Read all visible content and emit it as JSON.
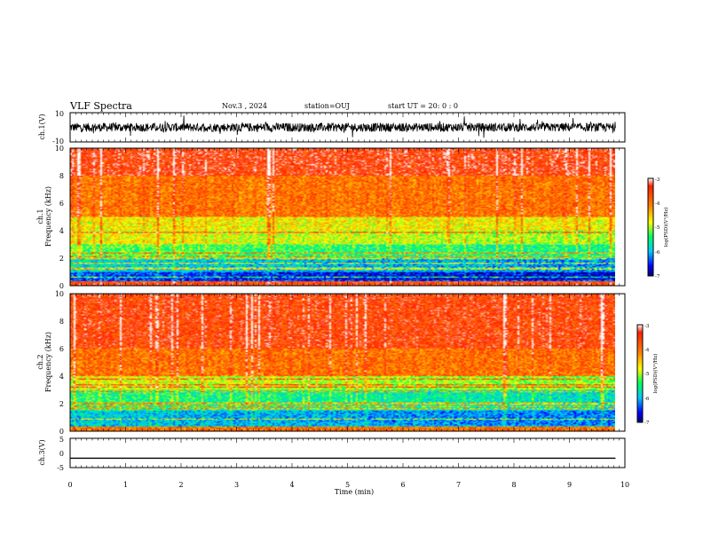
{
  "header": {
    "title": "VLF Spectra",
    "date": "Nov.3  , 2024",
    "station": "station=OUJ",
    "start_ut": "start  UT  =   20: 0  : 0"
  },
  "colors": {
    "frame": "#000000",
    "colormap": [
      "#000070",
      "#0000ff",
      "#00c8ff",
      "#00ff60",
      "#ffff00",
      "#ff8000",
      "#ff2000",
      "#ffffff"
    ]
  },
  "chart_data": [
    {
      "type": "line",
      "panel": "ch1-waveform",
      "ylabel": "ch.1(V)",
      "ylim": [
        -10,
        10
      ],
      "y_tick_labels": [
        "10",
        "-10"
      ],
      "xlim": [
        0,
        10
      ],
      "approx_level": 0,
      "approx_amplitude": 3
    },
    {
      "type": "heatmap",
      "panel": "ch1-spectrogram",
      "ylabel_line1": "ch.1",
      "ylabel_line2": "Frequency  (kHz)",
      "ylim": [
        0,
        10
      ],
      "y_tick_labels": [
        "0",
        "2",
        "4",
        "6",
        "8",
        "10"
      ],
      "xlim": [
        0,
        9.83
      ],
      "colorbar": {
        "range": [
          -7,
          -3
        ],
        "tick_labels": [
          "-3",
          "-4",
          "-5",
          "-6",
          "-7"
        ],
        "label": "log(PSD)(V²/Hz)"
      },
      "bands": [
        {
          "f_range": [
            8,
            10
          ],
          "logpsd": -3.5
        },
        {
          "f_range": [
            5,
            8
          ],
          "logpsd": -4.0
        },
        {
          "f_range": [
            3,
            5
          ],
          "logpsd": -4.7
        },
        {
          "f_range": [
            2,
            3
          ],
          "logpsd": -5.2
        },
        {
          "f_range": [
            1,
            2
          ],
          "logpsd": -5.8
        },
        {
          "f_range": [
            0.3,
            1
          ],
          "logpsd": -6.4
        },
        {
          "f_range": [
            0,
            0.3
          ],
          "logpsd": -3.6
        }
      ]
    },
    {
      "type": "heatmap",
      "panel": "ch2-spectrogram",
      "ylabel_line1": "ch.2",
      "ylabel_line2": "Frequency  (kHz)",
      "ylim": [
        0,
        10
      ],
      "y_tick_labels": [
        "0",
        "2",
        "4",
        "6",
        "8",
        "10"
      ],
      "xlim": [
        0,
        9.83
      ],
      "colorbar": {
        "range": [
          -7,
          -3
        ],
        "tick_labels": [
          "-3",
          "-4",
          "-5",
          "-6",
          "-7"
        ],
        "label": "log(PSD)(V²/Hz)"
      },
      "bands": [
        {
          "f_range": [
            6,
            10
          ],
          "logpsd": -3.6
        },
        {
          "f_range": [
            4,
            6
          ],
          "logpsd": -4.0
        },
        {
          "f_range": [
            3,
            4
          ],
          "logpsd": -4.8
        },
        {
          "f_range": [
            1.5,
            3
          ],
          "logpsd": -5.4
        },
        {
          "f_range": [
            0.3,
            1.5
          ],
          "logpsd": -5.9
        },
        {
          "f_range": [
            0,
            0.3
          ],
          "logpsd": -4.0
        }
      ]
    },
    {
      "type": "line",
      "panel": "ch3-waveform",
      "ylabel": "ch.3(V)",
      "ylim": [
        -5,
        5
      ],
      "y_tick_labels": [
        "5",
        "0",
        "-5"
      ],
      "xlim": [
        0,
        10
      ],
      "approx_level": -1.8,
      "approx_amplitude": 0
    }
  ],
  "x_axis": {
    "label": "Time  (min)",
    "range": [
      0,
      10
    ],
    "tick_labels": [
      "0",
      "1",
      "2",
      "3",
      "4",
      "5",
      "6",
      "7",
      "8",
      "9",
      "10"
    ]
  }
}
